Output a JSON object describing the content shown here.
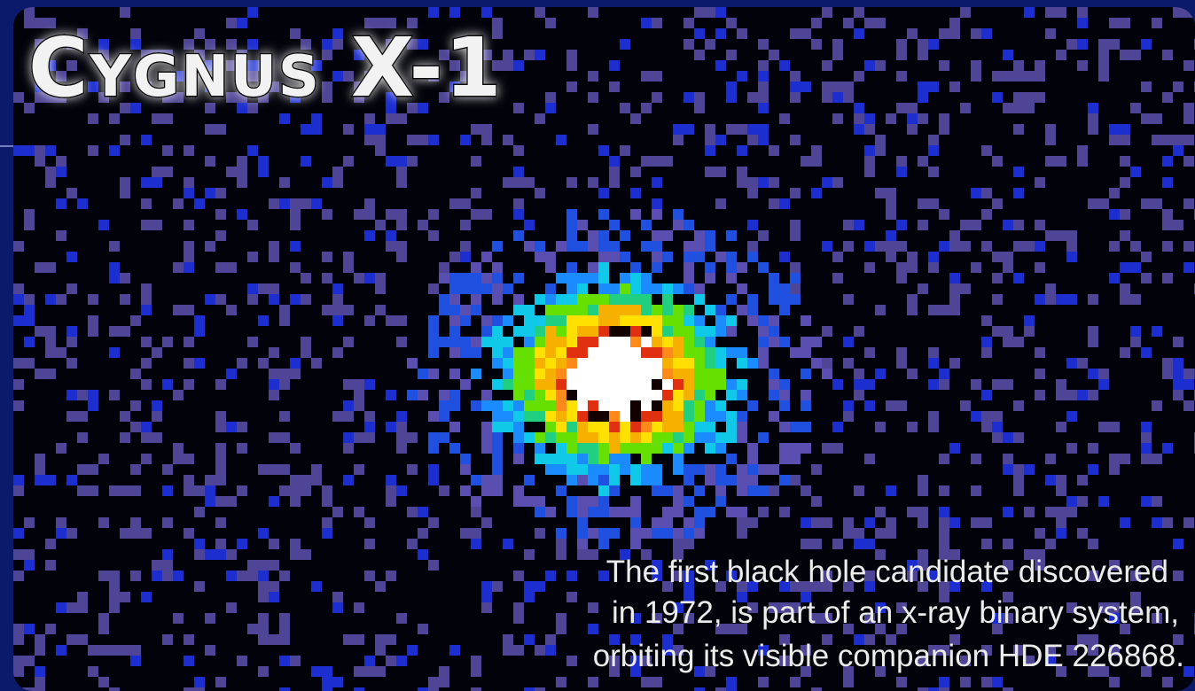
{
  "title": "Cygnus X-1",
  "caption": [
    "The first black hole candidate discovered",
    "in 1972, is part of an x-ray binary system,",
    "orbiting its visible companion HDE 226868."
  ]
}
